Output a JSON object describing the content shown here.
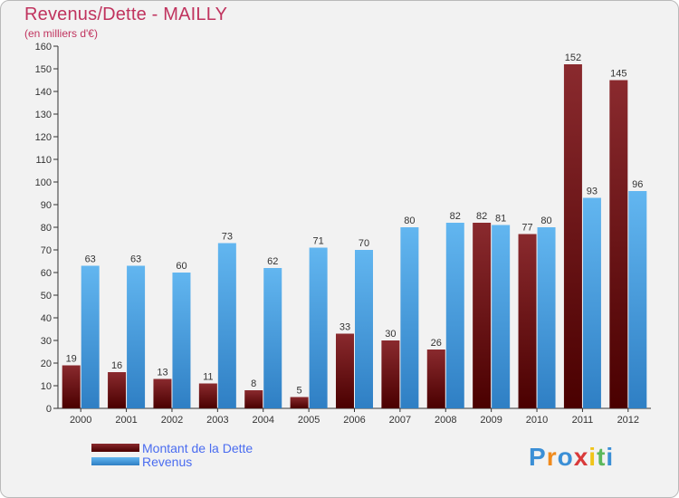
{
  "title": "Revenus/Dette - MAILLY",
  "subtitle": "(en milliers d'€)",
  "legend": {
    "debt": "Montant de la Dette",
    "revenue": "Revenus"
  },
  "logo": {
    "text": "Proxiti",
    "letters": [
      "P",
      "r",
      "o",
      "x",
      "i",
      "t",
      "i"
    ]
  },
  "colors": {
    "debt_dark": "#4a0000",
    "debt_light": "#8a2a2e",
    "revenue_dark": "#2f7fc4",
    "revenue_light": "#62b6f0",
    "title": "#c0335e",
    "legend_text": "#4a6cf0"
  },
  "chart_data": {
    "type": "bar",
    "title": "Revenus/Dette - MAILLY",
    "ylabel": "(en milliers d'€)",
    "ylim": [
      0,
      160
    ],
    "yticks": [
      0,
      10,
      20,
      30,
      40,
      50,
      60,
      70,
      80,
      90,
      100,
      110,
      120,
      130,
      140,
      150,
      160
    ],
    "categories": [
      "2000",
      "2001",
      "2002",
      "2003",
      "2004",
      "2005",
      "2006",
      "2007",
      "2008",
      "2009",
      "2010",
      "2011",
      "2012"
    ],
    "series": [
      {
        "name": "Montant de la Dette",
        "values": [
          19,
          16,
          13,
          11,
          8,
          5,
          33,
          30,
          26,
          82,
          77,
          152,
          145
        ]
      },
      {
        "name": "Revenus",
        "values": [
          63,
          63,
          60,
          73,
          62,
          71,
          70,
          80,
          82,
          81,
          80,
          93,
          96
        ]
      }
    ],
    "grid": false,
    "legend_position": "bottom-left"
  }
}
